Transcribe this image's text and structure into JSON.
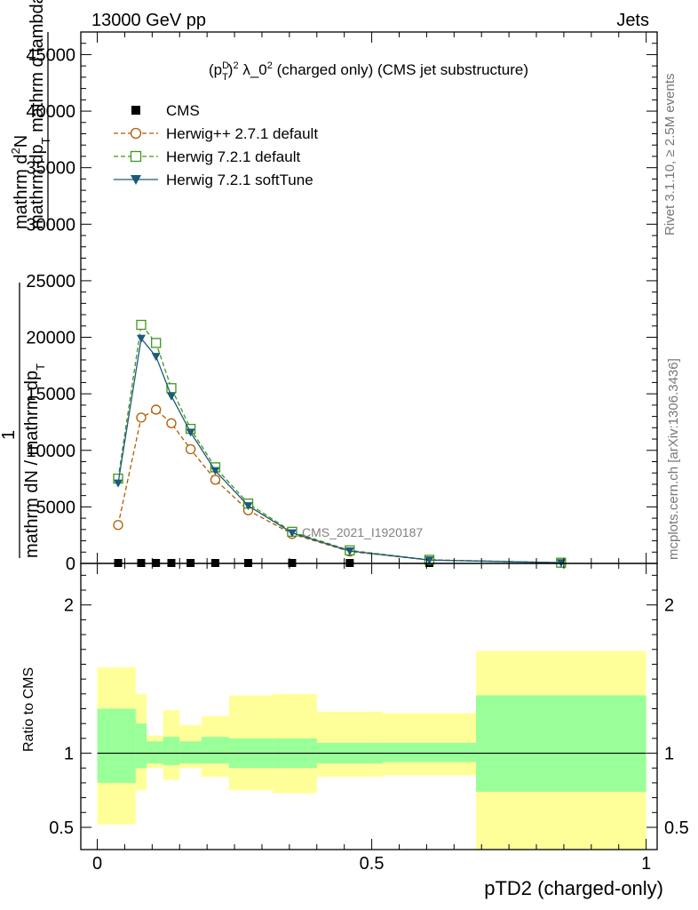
{
  "header": {
    "left": "13000 GeV pp",
    "right": "Jets"
  },
  "side_labels": {
    "rivet": "Rivet 3.1.10, ≥ 2.5M events",
    "mcplots": "mcplots.cern.ch [arXiv:1306.3436]"
  },
  "chart_data": [
    {
      "type": "line",
      "panel": "main",
      "title_parts": [
        "(p",
        "D",
        "T",
        ")",
        "2",
        " λ_0",
        "2",
        " (charged only) (CMS jet substructure)"
      ],
      "ylabel_parts": [
        "mathrm d",
        "2",
        "N",
        "mathrm dp",
        "T",
        " mathrm d lambda",
        "1",
        "mathrm dN / mathrm dp",
        "T"
      ],
      "watermark": "CMS_2021_I1920187",
      "xlim": [
        -0.03,
        1.02
      ],
      "ylim": [
        0,
        47000
      ],
      "yticks": [
        0,
        5000,
        10000,
        15000,
        20000,
        25000,
        30000,
        35000,
        40000,
        45000
      ],
      "grid": false,
      "legend_position": "top-left",
      "series": [
        {
          "name": "CMS",
          "color": "#000000",
          "marker": "square-filled",
          "x": [
            0.038,
            0.08,
            0.107,
            0.135,
            0.17,
            0.215,
            0.275,
            0.355,
            0.46,
            0.605,
            0.845
          ],
          "y": [
            0,
            0,
            0,
            0,
            0,
            0,
            0,
            0,
            0,
            0,
            0
          ]
        },
        {
          "name": "Herwig++ 2.7.1 default",
          "color": "#b05a00",
          "marker": "circle-open",
          "dash": "dashed",
          "x": [
            0.038,
            0.08,
            0.107,
            0.135,
            0.17,
            0.215,
            0.275,
            0.355,
            0.46,
            0.605,
            0.845
          ],
          "y": [
            3400,
            12900,
            13600,
            12400,
            10100,
            7400,
            4700,
            2600,
            1050,
            300,
            60
          ]
        },
        {
          "name": "Herwig 7.2.1 default",
          "color": "#3a9a1a",
          "marker": "square-open",
          "dash": "dashed",
          "x": [
            0.038,
            0.08,
            0.107,
            0.135,
            0.17,
            0.215,
            0.275,
            0.355,
            0.46,
            0.605,
            0.845
          ],
          "y": [
            7500,
            21100,
            19500,
            15500,
            11900,
            8500,
            5300,
            2800,
            1150,
            320,
            65
          ]
        },
        {
          "name": "Herwig 7.2.1 softTune",
          "color": "#1f5a78",
          "marker": "triangle-down-filled",
          "dash": "solid",
          "x": [
            0.038,
            0.08,
            0.107,
            0.135,
            0.17,
            0.215,
            0.275,
            0.355,
            0.46,
            0.605,
            0.845
          ],
          "y": [
            7100,
            19900,
            18300,
            14800,
            11600,
            8200,
            5100,
            2700,
            1100,
            300,
            60
          ]
        }
      ]
    },
    {
      "type": "area",
      "panel": "ratio",
      "ylabel": "Ratio to CMS",
      "xlabel": "pTD2 (charged-only)",
      "xlim": [
        -0.03,
        1.02
      ],
      "ylim": [
        0.35,
        2.28
      ],
      "yticks": [
        0.5,
        1,
        2
      ],
      "xticks": [
        0,
        0.5,
        1
      ],
      "bands": {
        "color_total": "#ffff99",
        "color_stat": "#99ff99",
        "bins": [
          {
            "x0": 0.0,
            "x1": 0.07,
            "stat": [
              0.8,
              1.3
            ],
            "total": [
              0.52,
              1.58
            ]
          },
          {
            "x0": 0.07,
            "x1": 0.09,
            "stat": [
              0.9,
              1.2
            ],
            "total": [
              0.75,
              1.4
            ]
          },
          {
            "x0": 0.09,
            "x1": 0.12,
            "stat": [
              0.93,
              1.08
            ],
            "total": [
              0.9,
              1.12
            ]
          },
          {
            "x0": 0.12,
            "x1": 0.15,
            "stat": [
              0.92,
              1.11
            ],
            "total": [
              0.82,
              1.29
            ]
          },
          {
            "x0": 0.15,
            "x1": 0.19,
            "stat": [
              0.93,
              1.08
            ],
            "total": [
              0.9,
              1.19
            ]
          },
          {
            "x0": 0.19,
            "x1": 0.24,
            "stat": [
              0.93,
              1.11
            ],
            "total": [
              0.84,
              1.25
            ]
          },
          {
            "x0": 0.24,
            "x1": 0.32,
            "stat": [
              0.9,
              1.1
            ],
            "total": [
              0.75,
              1.39
            ]
          },
          {
            "x0": 0.32,
            "x1": 0.4,
            "stat": [
              0.9,
              1.1
            ],
            "total": [
              0.73,
              1.4
            ]
          },
          {
            "x0": 0.4,
            "x1": 0.52,
            "stat": [
              0.93,
              1.07
            ],
            "total": [
              0.84,
              1.28
            ]
          },
          {
            "x0": 0.52,
            "x1": 0.69,
            "stat": [
              0.94,
              1.07
            ],
            "total": [
              0.85,
              1.27
            ]
          },
          {
            "x0": 0.69,
            "x1": 1.0,
            "stat": [
              0.74,
              1.39
            ],
            "total": [
              0.35,
              1.69
            ]
          }
        ]
      }
    }
  ]
}
